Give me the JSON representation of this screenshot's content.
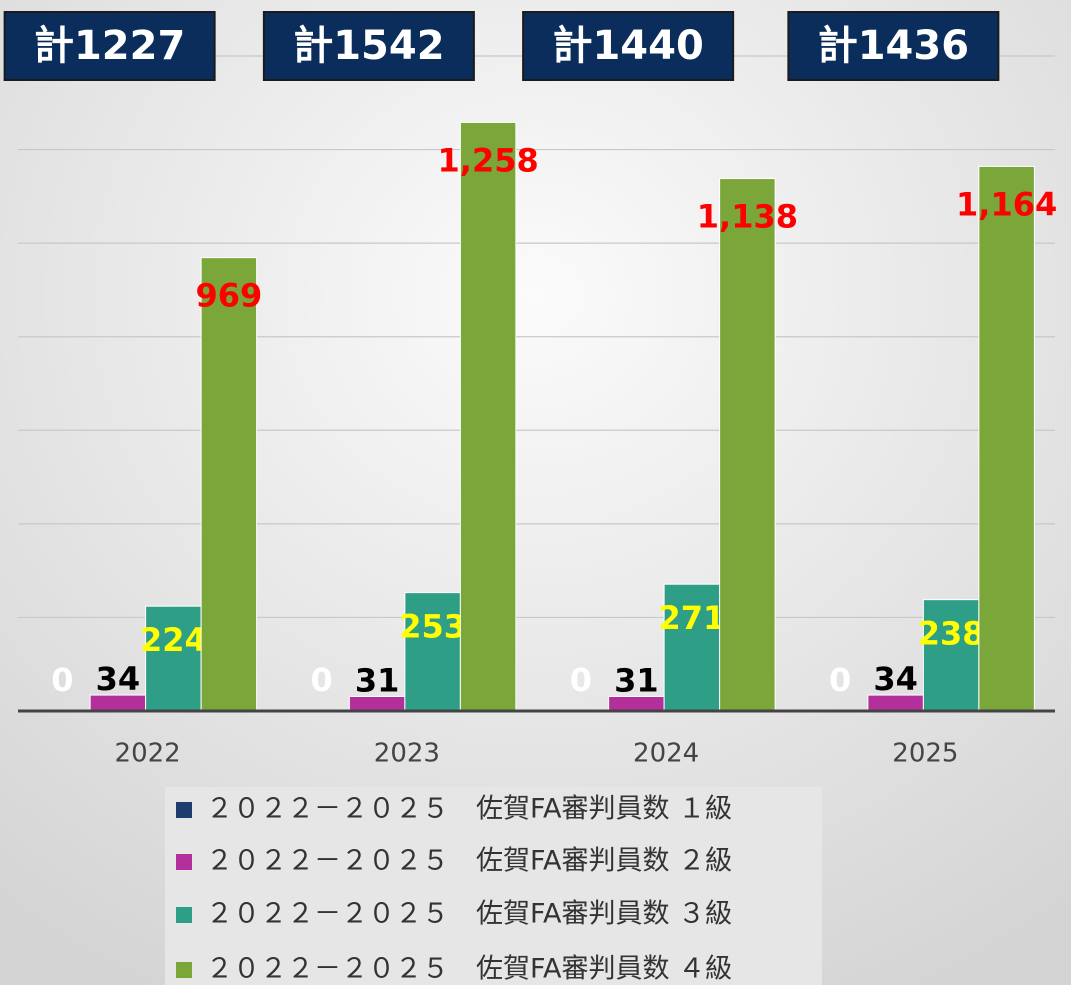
{
  "chart_data": {
    "type": "bar",
    "categories": [
      "2022",
      "2023",
      "2024",
      "2025"
    ],
    "annotations": [
      "計1227",
      "計1542",
      "計1440",
      "計1436"
    ],
    "series": [
      {
        "name": "２０２２－２０２５　佐賀FA審判員数 １級",
        "color": "#1f3c6e",
        "label_color": "#ffffff",
        "values": [
          0,
          0,
          0,
          0
        ]
      },
      {
        "name": "２０２２－２０２５　佐賀FA審判員数 ２級",
        "color": "#b3309c",
        "label_color": "#000000",
        "values": [
          34,
          31,
          31,
          34
        ]
      },
      {
        "name": "２０２２－２０２５　佐賀FA審判員数 ３級",
        "color": "#2e9e86",
        "label_color": "#ffff00",
        "values": [
          224,
          253,
          271,
          238
        ]
      },
      {
        "name": "２０２２－２０２５　佐賀FA審判員数 ４級",
        "color": "#7aa63a",
        "label_color": "#ff0000",
        "values": [
          969,
          1258,
          1138,
          1164
        ],
        "value_labels": [
          "969",
          "1,258",
          "1,138",
          "1,164"
        ]
      }
    ],
    "ylim": [
      0,
      1400
    ],
    "yticks": [
      0,
      200,
      400,
      600,
      800,
      1000,
      1200,
      1400
    ],
    "grid": true
  }
}
